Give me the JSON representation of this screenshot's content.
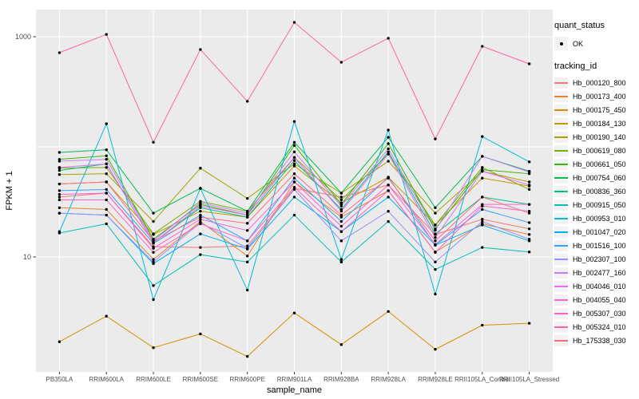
{
  "figure": {
    "background": "#FFFFFF",
    "panel_background": "#EBEBEB",
    "grid_color": "#FFFFFF",
    "tick_color": "#333333",
    "tick_text_color": "#4D4D4D",
    "axis_title_color": "#000000",
    "point_color": "#000000"
  },
  "axes": {
    "x_title": "sample_name",
    "y_title": "FPKM + 1",
    "y_tick_labels": [
      "1000",
      "10"
    ],
    "y_tick_values": [
      1000,
      10
    ],
    "y_gridline_values": [
      10,
      100,
      1000
    ],
    "y_scale": "log10"
  },
  "legend": {
    "quant_status_title": "quant_status",
    "quant_status_items": [
      {
        "label": "OK",
        "marker": "black-point"
      }
    ],
    "tracking_id_title": "tracking_id"
  },
  "chart_data": {
    "type": "line",
    "title": "",
    "xlabel": "sample_name",
    "ylabel": "FPKM + 1",
    "yscale": "log10",
    "ylim": [
      0.93,
      1760
    ],
    "yticks": [
      10,
      1000
    ],
    "ygridlines": [
      10,
      100,
      1000
    ],
    "grid": true,
    "legend_position": "right",
    "point_marker": "black-dot",
    "categories": [
      "PB350LA",
      "RRIM600LA",
      "RRIM600LE",
      "RRIM600SE",
      "RRIM600PE",
      "RRIM901LA",
      "RRIM928BA",
      "RRIM928LA",
      "RRIM928LE",
      "RRII105LA_Control",
      "RRII105LA_Stressed"
    ],
    "series": [
      {
        "name": "Hb_000120_800",
        "color": "#F8766D",
        "values": [
          35,
          38,
          12.4,
          12.2,
          12.6,
          42,
          35,
          45,
          16,
          22,
          18
        ]
      },
      {
        "name": "Hb_000173_400",
        "color": "#EA8331",
        "values": [
          28,
          27,
          9.5,
          21,
          10.2,
          48,
          23,
          40,
          11.1,
          20,
          16
        ]
      },
      {
        "name": "Hb_000175_450",
        "color": "#D89000",
        "values": [
          1.7,
          2.9,
          1.5,
          2.0,
          1.25,
          3.1,
          1.6,
          3.2,
          1.45,
          2.4,
          2.5
        ]
      },
      {
        "name": "Hb_000184_130",
        "color": "#C09B00",
        "values": [
          46,
          48,
          16,
          26,
          23,
          67,
          31,
          53,
          19.5,
          52,
          44
        ]
      },
      {
        "name": "Hb_000190_140",
        "color": "#A3A500",
        "values": [
          56,
          57,
          21,
          64,
          34,
          70,
          38,
          74,
          25,
          60,
          48
        ]
      },
      {
        "name": "Hb_000619_080",
        "color": "#7CAE00",
        "values": [
          64,
          65,
          16.2,
          32,
          26,
          80,
          33,
          86,
          19.5,
          65,
          41
        ]
      },
      {
        "name": "Hb_000661_050",
        "color": "#39B600",
        "values": [
          77,
          83,
          14.5,
          30,
          24,
          103,
          30,
          107,
          18,
          62,
          57
        ]
      },
      {
        "name": "Hb_000754_060",
        "color": "#00BB4E",
        "values": [
          89,
          94,
          25,
          42,
          26,
          110,
          38,
          122,
          28,
          82,
          60
        ]
      },
      {
        "name": "Hb_000836_360",
        "color": "#00C087",
        "values": [
          61,
          70,
          13.5,
          28,
          23,
          75,
          27,
          90,
          16.2,
          35,
          30
        ]
      },
      {
        "name": "Hb_000915_050",
        "color": "#00C0B2",
        "values": [
          16.5,
          20,
          5.5,
          10.5,
          9.0,
          24,
          9.0,
          21,
          7.7,
          12.2,
          11.1
        ]
      },
      {
        "name": "Hb_000953_010",
        "color": "#00BCD8",
        "values": [
          17,
          162,
          4.1,
          42,
          5.0,
          170,
          9.5,
          142,
          4.6,
          124,
          73
        ]
      },
      {
        "name": "Hb_001047_020",
        "color": "#00B0F6",
        "values": [
          25,
          24,
          8.7,
          16.2,
          11.8,
          35,
          17,
          35,
          12.8,
          19.5,
          14
        ]
      },
      {
        "name": "Hb_001516_100",
        "color": "#35A2FF",
        "values": [
          40,
          41,
          13.3,
          24,
          14,
          52,
          21,
          53,
          12.8,
          27,
          20.5
        ]
      },
      {
        "name": "Hb_002307_100",
        "color": "#9590FF",
        "values": [
          25,
          24,
          9.0,
          20.5,
          12,
          41,
          14,
          26,
          9.0,
          21,
          14.5
        ]
      },
      {
        "name": "Hb_002477_160",
        "color": "#C77CFF",
        "values": [
          74,
          77,
          14,
          31,
          25,
          90,
          29,
          96,
          17.5,
          82,
          59
        ]
      },
      {
        "name": "Hb_004046_010",
        "color": "#E76BF3",
        "values": [
          65,
          70,
          13.5,
          29,
          24,
          80,
          26,
          86,
          15,
          60,
          45
        ]
      },
      {
        "name": "Hb_004055_040",
        "color": "#FA62DB",
        "values": [
          37,
          38,
          12,
          22,
          17.4,
          48,
          19,
          45,
          13,
          30,
          30
        ]
      },
      {
        "name": "Hb_005307_030",
        "color": "#FF61C7",
        "values": [
          33,
          33,
          11,
          20,
          14,
          43,
          17,
          40,
          11,
          29,
          26
        ]
      },
      {
        "name": "Hb_005324_010",
        "color": "#FF62A8",
        "values": [
          716,
          1050,
          110,
          765,
          259,
          1350,
          586,
          968,
          118,
          818,
          567
        ]
      },
      {
        "name": "Hb_175338_030",
        "color": "#FF6B84",
        "values": [
          46,
          48,
          13.9,
          23,
          20.2,
          57,
          24,
          52,
          14,
          35,
          25
        ]
      }
    ]
  }
}
